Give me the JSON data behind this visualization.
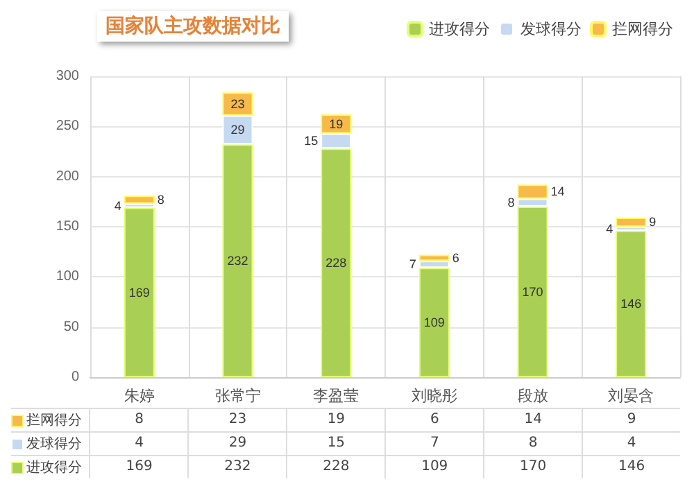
{
  "chart_data": {
    "type": "bar",
    "title": "国家队主攻数据对比",
    "stacked": true,
    "data_labels": true,
    "grid": true,
    "legend": "top right",
    "categories": [
      "朱婷",
      "张常宁",
      "李盈莹",
      "刘晓彤",
      "段放",
      "刘晏含"
    ],
    "ylim": [
      0,
      300
    ],
    "yticks": [
      0,
      50,
      100,
      150,
      200,
      250,
      300
    ],
    "series": [
      {
        "name": "进攻得分",
        "color": "#a9cf54",
        "values": [
          169,
          232,
          228,
          109,
          170,
          146
        ]
      },
      {
        "name": "发球得分",
        "color": "#c5d9f1",
        "values": [
          4,
          29,
          15,
          7,
          8,
          4
        ]
      },
      {
        "name": "拦网得分",
        "color": "#f6b94a",
        "values": [
          8,
          23,
          19,
          6,
          14,
          9
        ]
      }
    ],
    "annotations": [
      "拦网得分",
      "8",
      "23",
      "19",
      "6",
      "14",
      "9",
      "发球得分",
      "4",
      "29",
      "15",
      "7",
      "8",
      "4",
      "进攻得分",
      "169",
      "232",
      "228",
      "109",
      "170",
      "146"
    ]
  }
}
